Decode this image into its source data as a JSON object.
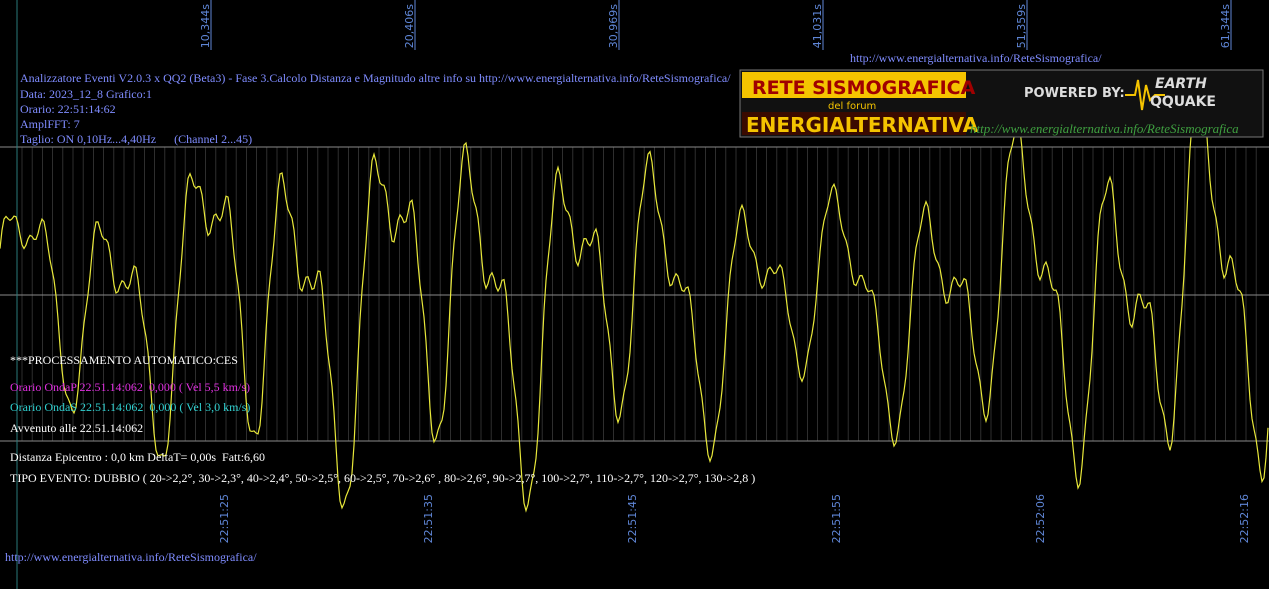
{
  "header": {
    "lines": [
      "Analizzatore Eventi V2.0.3 x QQ2 (Beta3) - Fase 3.Calcolo Distanza e Magnitudo altre info su http://www.energialternativa.info/ReteSismografica/",
      "Data: 2023_12_8 Grafico:1",
      "Orario: 22:51:14:62",
      "AmplFFT: 7",
      "Taglio: ON 0,10Hz...4,40Hz      (Channel 2...45)"
    ],
    "url": "http://www.energialternativa.info/ReteSismografica/"
  },
  "top_labels": [
    "10,344s",
    "20,406s",
    "30,969s",
    "41,031s",
    "51,359s",
    "61,344s"
  ],
  "bottom_labels": [
    "22:51:25",
    "22:51:35",
    "22:51:45",
    "22:51:55",
    "22:52:06",
    "22:52:16"
  ],
  "processing": {
    "title": "***PROCESSAMENTO AUTOMATICO:CES",
    "onda_p": "Orario OndaP 22.51.14:062  0,000 ( Vel 5,5 km/s)",
    "onda_s": "Orario OndaS 22.51.14:062  0,000 ( Vel 3,0 km/s)",
    "avvenuto": "Avvenuto alle 22.51.14:062",
    "distanza": "Distanza Epicentro : 0,0 km DeltaT= 0,00s  Fatt:6,60",
    "tipo": "TIPO EVENTO: DUBBIO ( 20->2,2°, 30->2,3°, 40->2,4°, 50->2,5°, 60->2,5°, 70->2,6° , 80->2,6°, 90->2,7°, 100->2,7°, 110->2,7°, 120->2,7°, 130->2,8 )"
  },
  "footer_url": "http://www.energialternativa.info/ReteSismografica/",
  "logo": {
    "title": "RETE SISMOGRAFICA",
    "subtitle": "del forum",
    "name": "ENERGIALTERNATIVA",
    "powered": "POWERED BY:",
    "earth": "EARTH",
    "quake": "QQUAKE",
    "url": "http://www.energialternativa.info/ReteSismografica"
  }
}
